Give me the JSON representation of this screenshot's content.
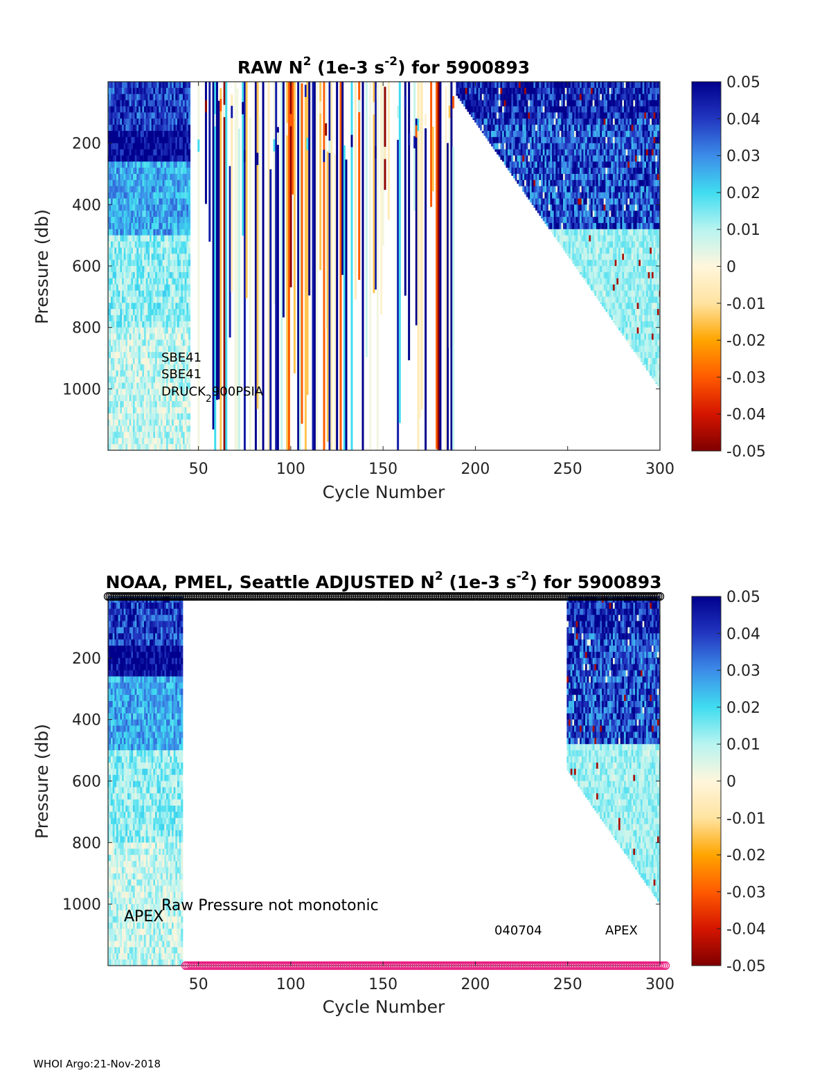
{
  "footer": "WHOI Argo:21-Nov-2018",
  "colorbar": {
    "ticks": [
      "0.05",
      "0.04",
      "0.03",
      "0.02",
      "0.01",
      "0",
      "-0.01",
      "-0.02",
      "-0.03",
      "-0.04",
      "-0.05"
    ],
    "range": [
      -0.05,
      0.05
    ],
    "stops": [
      "#7f0000",
      "#d41500",
      "#ff5a00",
      "#ffa500",
      "#ffe3a0",
      "#fff6dc",
      "#b8f4f0",
      "#40dcf0",
      "#3c8ce8",
      "#2236c0",
      "#00008c"
    ]
  },
  "chart_data": [
    {
      "type": "heatmap",
      "title_main": "RAW N",
      "title_rest": " (1e-3 s",
      "title_tail": ") for 5900893",
      "sup_2": "2",
      "sup_neg2": "-2",
      "xlabel": "Cycle Number",
      "ylabel": "Pressure (db)",
      "xlim": [
        1,
        300
      ],
      "ylim": [
        0,
        1200
      ],
      "xticks": [
        "50",
        "100",
        "150",
        "200",
        "250",
        "300"
      ],
      "yticks": [
        "200",
        "400",
        "600",
        "800",
        "1000"
      ],
      "clim": [
        -0.05,
        0.05
      ],
      "regions": [
        {
          "cycles": [
            1,
            45
          ],
          "description": "stable stratification, strong near 150-200 db",
          "values": {
            "0-150": 0.045,
            "150-250": 0.05,
            "250-500": 0.025,
            "500-1200": 0.01
          }
        },
        {
          "cycles": [
            46,
            188
          ],
          "description": "sparse noisy vertical streaks, positive and negative values"
        },
        {
          "cycles": [
            190,
            300
          ],
          "description": "profiles deepening with cycle; max depth ~1000 db at cycle 300",
          "values": {
            "0-100": 0.05,
            "100-500": 0.045,
            "500-1000": 0.012
          }
        }
      ],
      "annotations": [
        "SBE41",
        "SBE41",
        "DRUCK",
        "2",
        "900PSIA"
      ]
    },
    {
      "type": "heatmap",
      "title_prefix": "NOAA, PMEL, Seattle  ADJUSTED N",
      "title_rest": " (1e-3 s",
      "title_tail": ") for 5900893",
      "sup_2": "2",
      "sup_neg2": "-2",
      "xlabel": "Cycle Number",
      "ylabel": "Pressure (db)",
      "xlim": [
        1,
        300
      ],
      "ylim": [
        0,
        1200
      ],
      "xticks": [
        "50",
        "100",
        "150",
        "200",
        "250",
        "300"
      ],
      "yticks": [
        "200",
        "400",
        "600",
        "800",
        "1000"
      ],
      "clim": [
        -0.05,
        0.05
      ],
      "regions": [
        {
          "cycles": [
            1,
            41
          ],
          "description": "good profiles, full depth"
        },
        {
          "cycles": [
            250,
            300
          ],
          "description": "good profiles, deepening with cycle"
        }
      ],
      "markers": [
        {
          "row": "top",
          "color": "#000000",
          "cycles": [
            1,
            300
          ],
          "shape": "open-circle"
        },
        {
          "row": "bottom",
          "color": "#e8197d",
          "cycles": [
            43,
            303
          ],
          "shape": "open-circle"
        }
      ],
      "annotations": [
        "APEX",
        "Raw Pressure not monotonic",
        "040704",
        "APEX"
      ]
    }
  ]
}
